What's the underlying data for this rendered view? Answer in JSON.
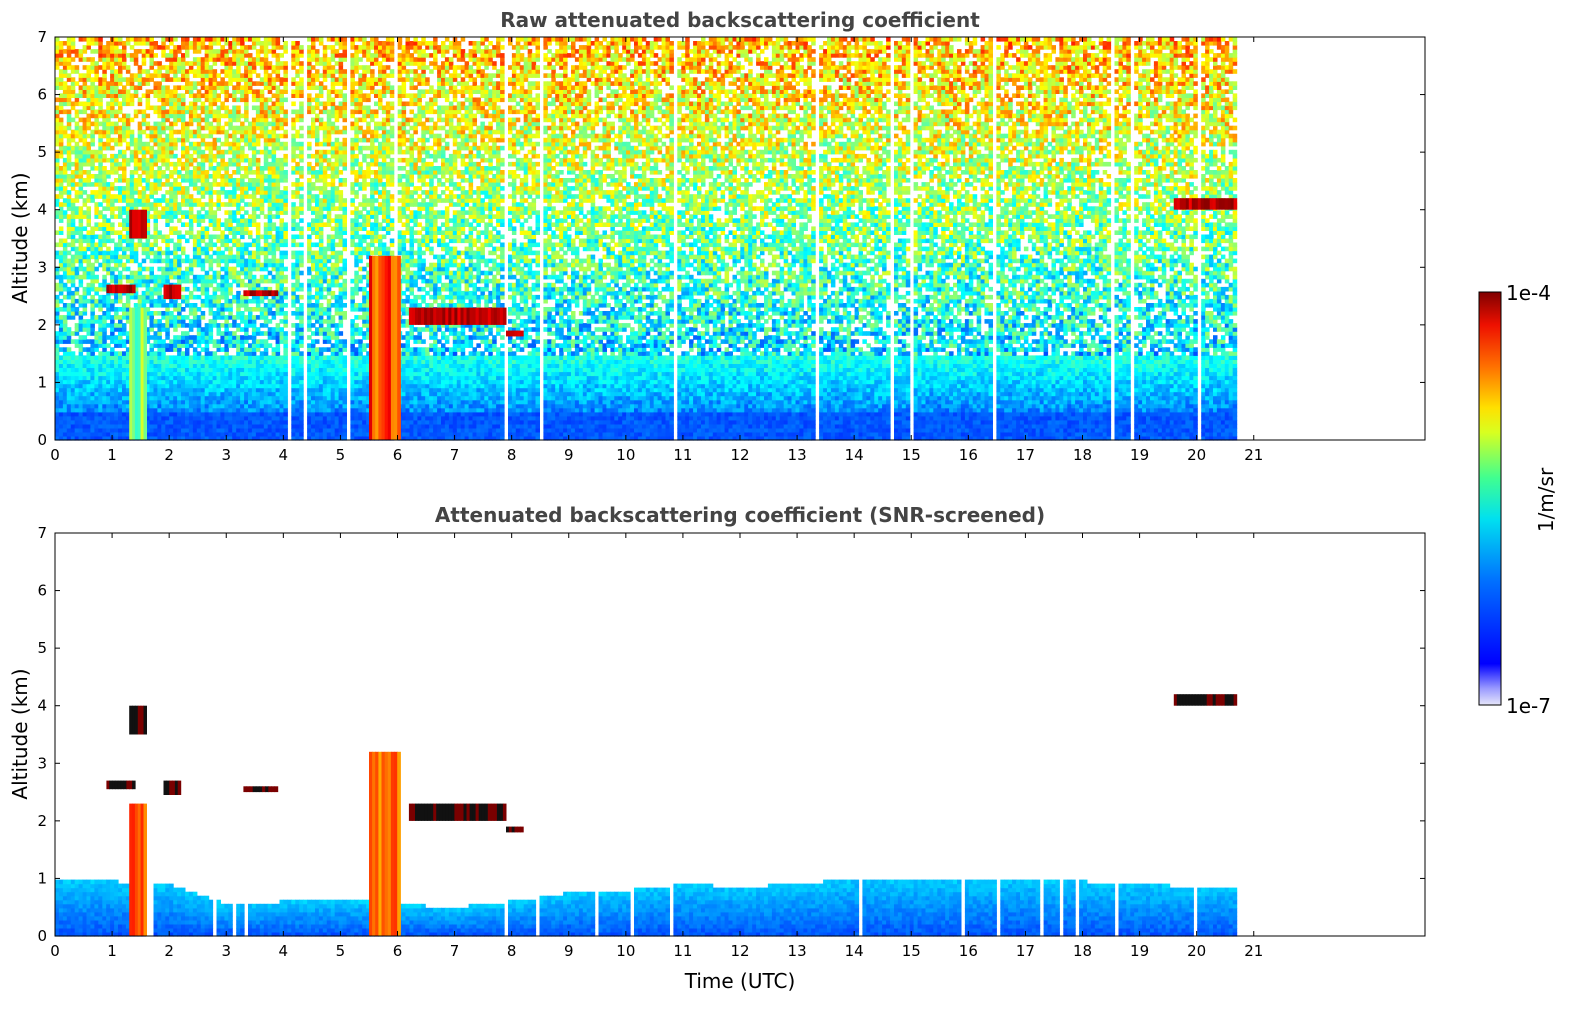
{
  "chart_data": [
    {
      "type": "heatmap",
      "title": "Raw attenuated backscattering coefficient",
      "xlabel": "",
      "ylabel": "Altitude (km)",
      "xlim": [
        0,
        24
      ],
      "ylim": [
        0,
        7
      ],
      "x_ticks": [
        0,
        1,
        2,
        3,
        4,
        5,
        6,
        7,
        8,
        9,
        10,
        11,
        12,
        13,
        14,
        15,
        16,
        17,
        18,
        19,
        20,
        21
      ],
      "y_ticks": [
        0,
        1,
        2,
        3,
        4,
        5,
        6,
        7
      ],
      "data_end_hour": 20.7,
      "features": [
        {
          "label": "boundary layer",
          "x_range": [
            0,
            20.7
          ],
          "altitude_km": [
            0,
            1.5
          ],
          "level": "1e-6"
        },
        {
          "label": "precipitation",
          "x_range": [
            5.5,
            6.05
          ],
          "altitude_km": [
            0,
            3.2
          ],
          "level": "3e-5"
        },
        {
          "label": "precipitation",
          "x_range": [
            1.3,
            1.6
          ],
          "altitude_km": [
            0,
            2.3
          ],
          "level": "3e-6"
        },
        {
          "label": "cloud",
          "x_range": [
            0.9,
            1.4
          ],
          "altitude_km": [
            2.55,
            2.7
          ],
          "level": "1e-4"
        },
        {
          "label": "cloud",
          "x_range": [
            1.3,
            1.6
          ],
          "altitude_km": [
            3.5,
            4.0
          ],
          "level": "1e-4"
        },
        {
          "label": "cloud",
          "x_range": [
            1.9,
            2.2
          ],
          "altitude_km": [
            2.45,
            2.7
          ],
          "level": "1e-4"
        },
        {
          "label": "cloud",
          "x_range": [
            3.3,
            3.9
          ],
          "altitude_km": [
            2.5,
            2.6
          ],
          "level": "1e-4"
        },
        {
          "label": "cloud",
          "x_range": [
            6.2,
            7.9
          ],
          "altitude_km": [
            2.0,
            2.3
          ],
          "level": "1e-4"
        },
        {
          "label": "cloud",
          "x_range": [
            7.9,
            8.2
          ],
          "altitude_km": [
            1.8,
            1.9
          ],
          "level": "1e-4"
        },
        {
          "label": "cloud",
          "x_range": [
            19.6,
            20.7
          ],
          "altitude_km": [
            4.0,
            4.2
          ],
          "level": "1e-4"
        }
      ]
    },
    {
      "type": "heatmap",
      "title": "Attenuated backscattering coefficient (SNR-screened)",
      "xlabel": "Time (UTC)",
      "ylabel": "Altitude (km)",
      "xlim": [
        0,
        24
      ],
      "ylim": [
        0,
        7
      ],
      "x_ticks": [
        0,
        1,
        2,
        3,
        4,
        5,
        6,
        7,
        8,
        9,
        10,
        11,
        12,
        13,
        14,
        15,
        16,
        17,
        18,
        19,
        20,
        21
      ],
      "y_ticks": [
        0,
        1,
        2,
        3,
        4,
        5,
        6,
        7
      ],
      "data_end_hour": 20.7,
      "boundary_layer_top_km": [
        [
          0,
          1.0
        ],
        [
          1,
          0.95
        ],
        [
          2,
          0.9
        ],
        [
          3,
          0.55
        ],
        [
          4,
          0.6
        ],
        [
          5,
          0.65
        ],
        [
          6,
          0.55
        ],
        [
          7,
          0.5
        ],
        [
          8,
          0.6
        ],
        [
          9,
          0.75
        ],
        [
          10,
          0.8
        ],
        [
          11,
          0.9
        ],
        [
          12,
          0.85
        ],
        [
          13,
          0.9
        ],
        [
          14,
          1.0
        ],
        [
          15,
          1.0
        ],
        [
          16,
          1.0
        ],
        [
          17,
          1.0
        ],
        [
          18,
          0.95
        ],
        [
          19,
          0.9
        ],
        [
          20,
          0.85
        ],
        [
          20.7,
          0.85
        ]
      ]
    }
  ],
  "colorbar": {
    "label": "1/m/sr",
    "min_label": "1e-7",
    "max_label": "1e-4",
    "scale": "log",
    "colormap": "jet"
  }
}
